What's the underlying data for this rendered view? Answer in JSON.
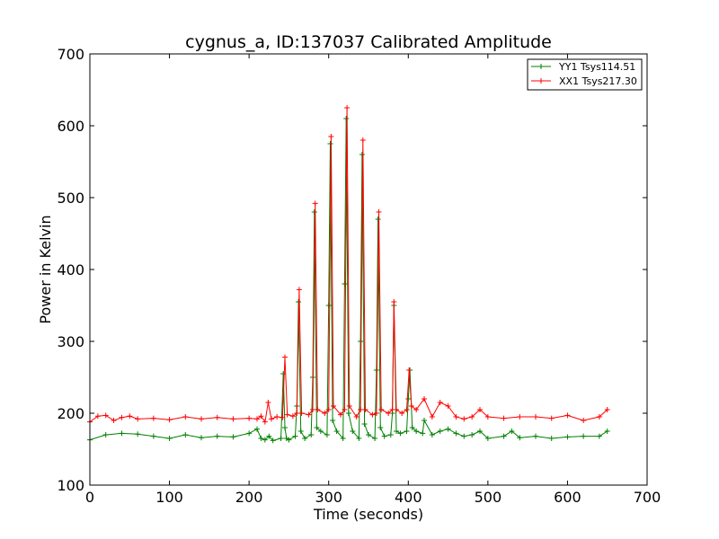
{
  "chart_data": {
    "type": "line",
    "title": "cygnus_a, ID:137037 Calibrated Amplitude",
    "xlabel": "Time (seconds)",
    "ylabel": "Power in Kelvin",
    "xlim": [
      0,
      700
    ],
    "ylim": [
      100,
      700
    ],
    "x_ticks": [
      "0",
      "100",
      "200",
      "300",
      "400",
      "500",
      "600",
      "700"
    ],
    "y_ticks": [
      "100",
      "200",
      "300",
      "400",
      "500",
      "600",
      "700"
    ],
    "grid": false,
    "legend_position": "top-right",
    "marker": "plus",
    "series": [
      {
        "name": "YY1 Tsys114.51",
        "color": "#008000",
        "x": [
          0,
          20,
          40,
          60,
          80,
          100,
          120,
          140,
          160,
          180,
          200,
          210,
          215,
          220,
          225,
          230,
          240,
          243,
          245,
          247,
          250,
          258,
          260,
          262,
          265,
          270,
          278,
          280,
          282,
          285,
          290,
          298,
          300,
          302,
          305,
          310,
          318,
          320,
          322,
          325,
          330,
          338,
          340,
          342,
          345,
          350,
          358,
          360,
          362,
          365,
          370,
          378,
          380,
          382,
          385,
          390,
          398,
          400,
          402,
          405,
          410,
          418,
          420,
          430,
          440,
          450,
          460,
          470,
          480,
          490,
          500,
          520,
          530,
          540,
          560,
          580,
          600,
          620,
          640,
          650
        ],
        "values": [
          163,
          170,
          172,
          171,
          168,
          165,
          170,
          166,
          168,
          167,
          172,
          178,
          165,
          163,
          168,
          162,
          165,
          255,
          180,
          165,
          163,
          168,
          210,
          355,
          175,
          165,
          170,
          250,
          480,
          180,
          175,
          170,
          350,
          575,
          190,
          175,
          165,
          380,
          610,
          200,
          175,
          165,
          300,
          560,
          185,
          170,
          165,
          260,
          470,
          180,
          168,
          170,
          200,
          350,
          175,
          172,
          175,
          220,
          260,
          180,
          175,
          172,
          190,
          170,
          175,
          178,
          172,
          168,
          170,
          175,
          165,
          168,
          175,
          166,
          168,
          165,
          167,
          168,
          168,
          175
        ]
      },
      {
        "name": "XX1 Tsys217.30",
        "color": "#ff0000",
        "x": [
          0,
          10,
          20,
          30,
          40,
          50,
          60,
          80,
          100,
          120,
          140,
          160,
          180,
          200,
          210,
          215,
          220,
          224,
          228,
          235,
          242,
          245,
          248,
          255,
          260,
          263,
          266,
          275,
          280,
          283,
          286,
          295,
          300,
          303,
          306,
          315,
          320,
          323,
          326,
          335,
          340,
          343,
          346,
          355,
          360,
          363,
          366,
          375,
          380,
          382,
          385,
          392,
          398,
          401,
          404,
          410,
          420,
          430,
          440,
          450,
          460,
          470,
          480,
          490,
          500,
          520,
          540,
          560,
          580,
          600,
          620,
          640,
          650
        ],
        "values": [
          188,
          196,
          197,
          190,
          194,
          196,
          192,
          193,
          191,
          195,
          192,
          194,
          192,
          193,
          192,
          196,
          188,
          215,
          192,
          195,
          194,
          278,
          198,
          196,
          200,
          372,
          200,
          198,
          205,
          492,
          205,
          200,
          205,
          585,
          210,
          198,
          205,
          625,
          210,
          195,
          205,
          580,
          205,
          198,
          200,
          480,
          205,
          200,
          205,
          355,
          205,
          200,
          205,
          260,
          210,
          205,
          220,
          195,
          215,
          210,
          195,
          192,
          195,
          205,
          195,
          193,
          195,
          195,
          193,
          197,
          190,
          195,
          205
        ]
      }
    ]
  }
}
